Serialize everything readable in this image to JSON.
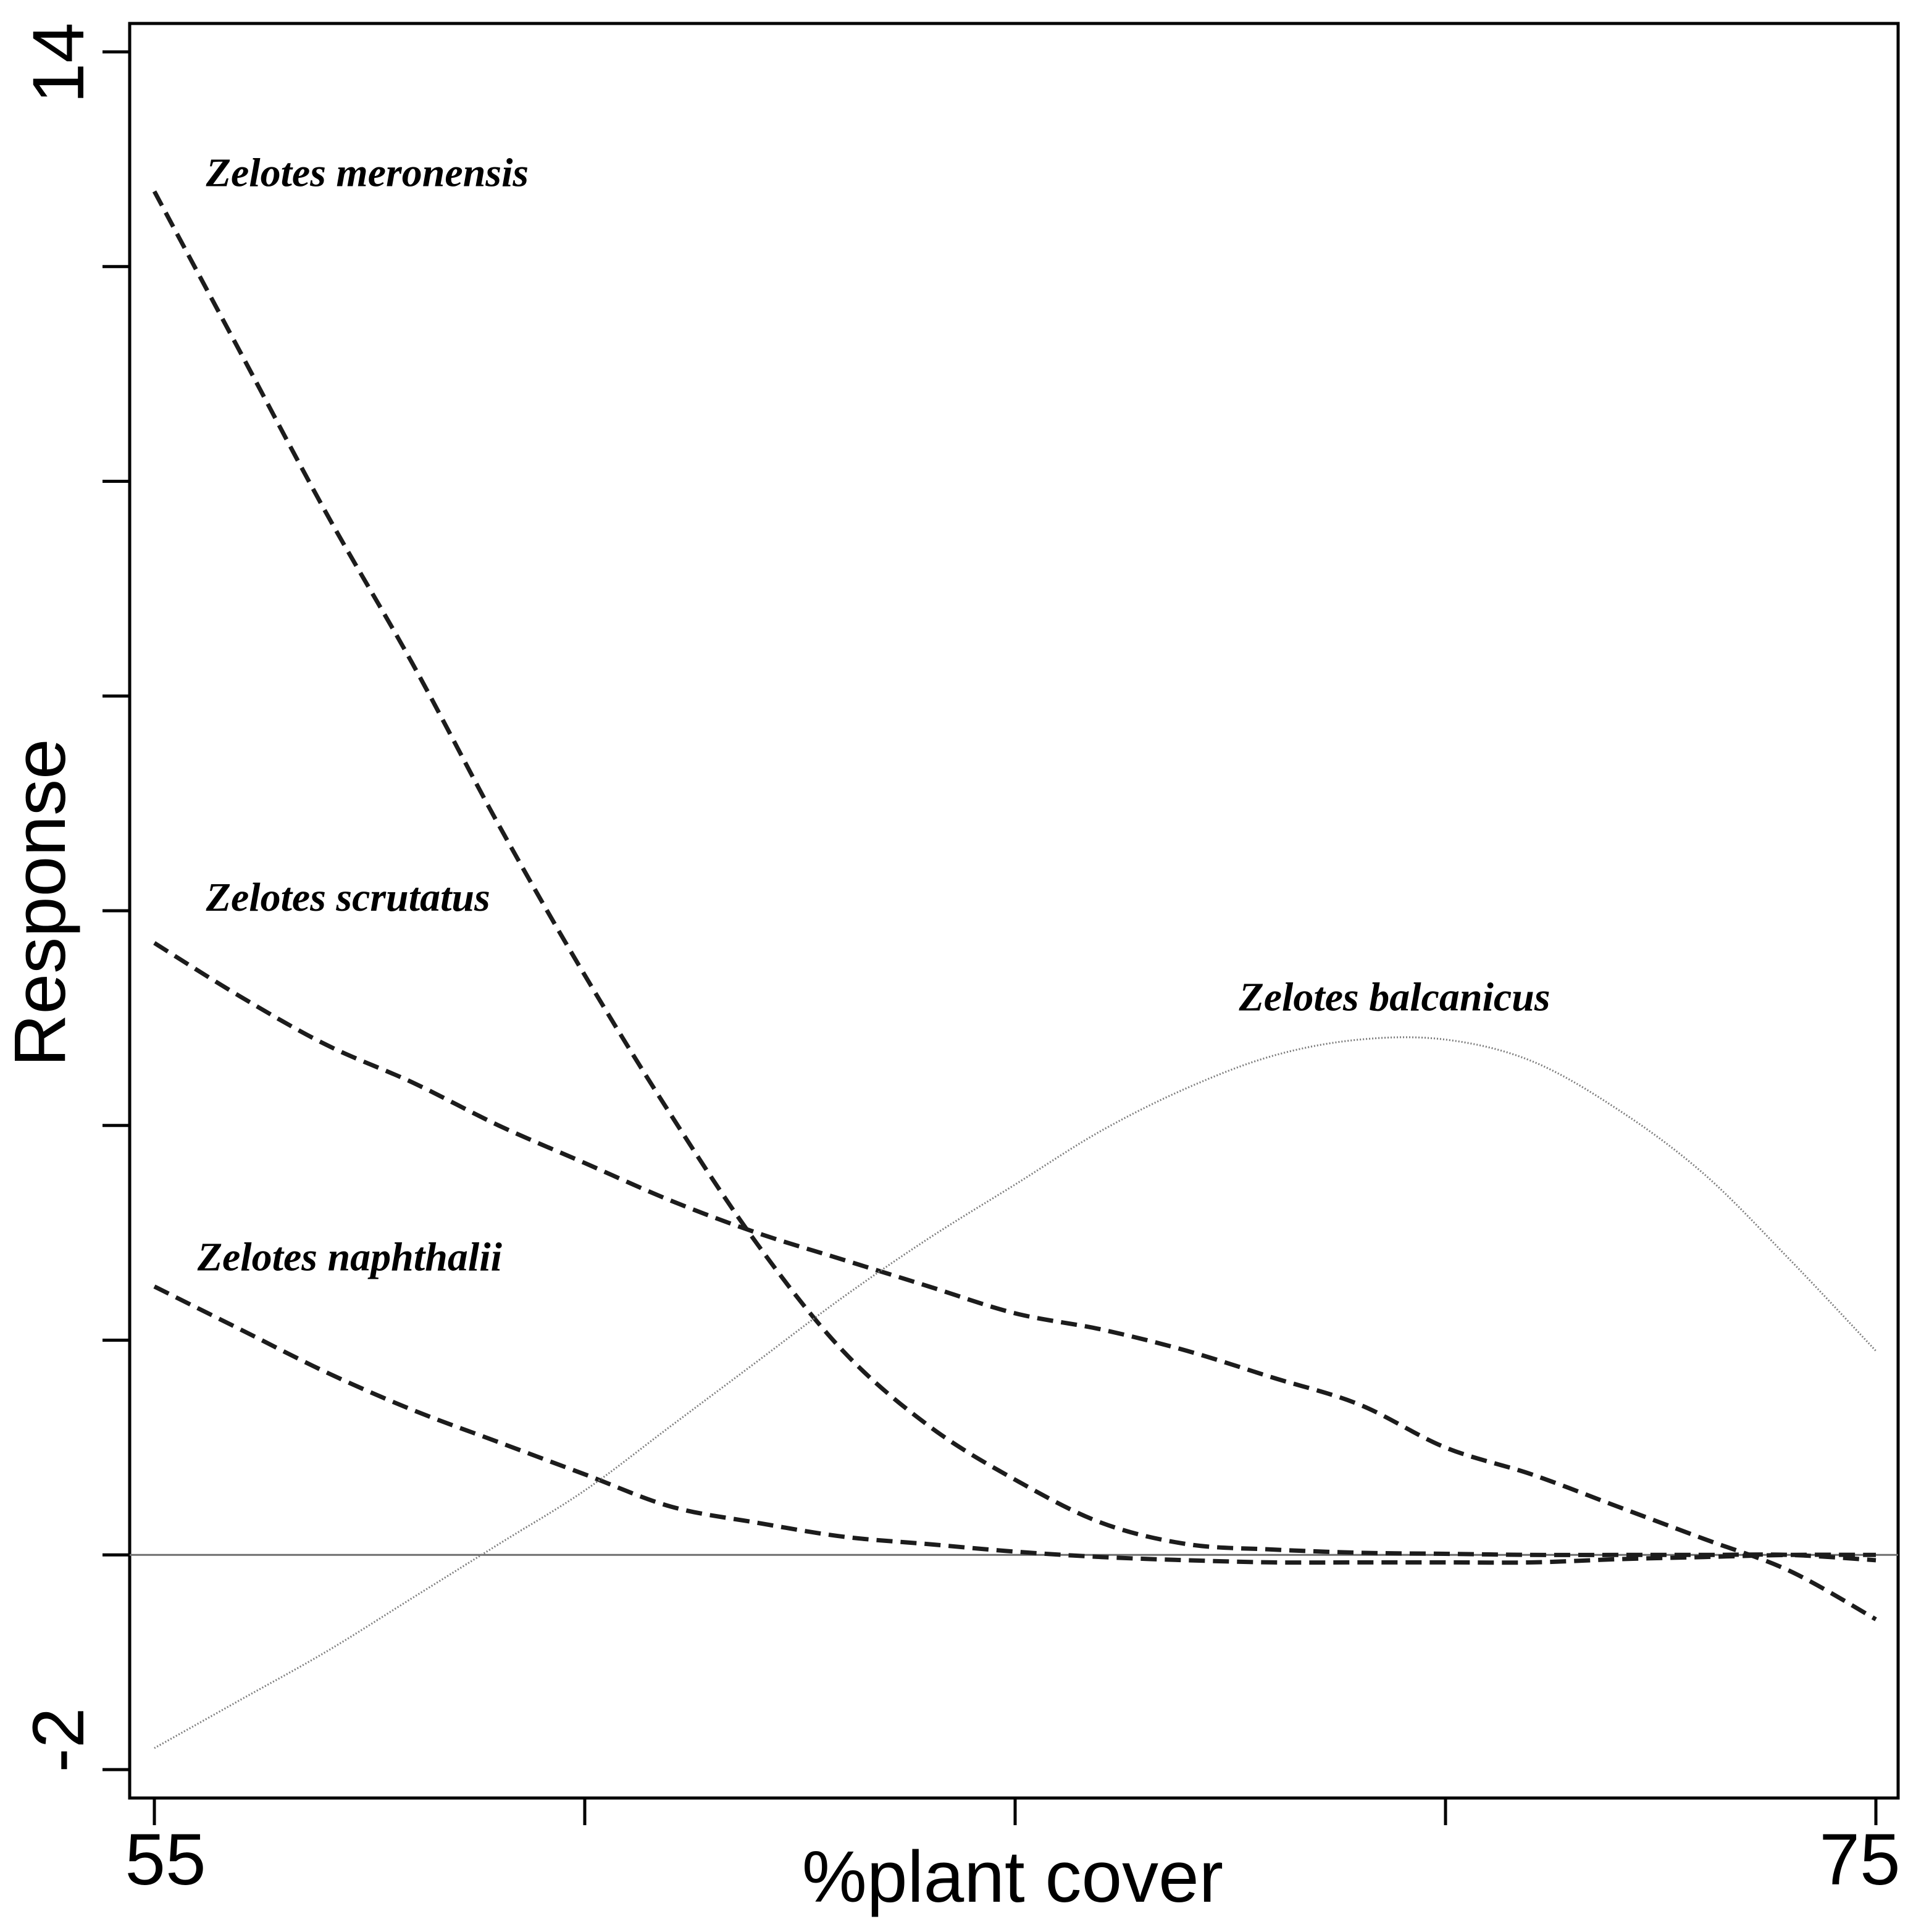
{
  "chart_data": {
    "type": "line",
    "title": "",
    "xlabel": "%plant cover",
    "ylabel": "Response",
    "xlim": [
      55,
      75
    ],
    "ylim": [
      -2,
      14
    ],
    "x_tick_labels": [
      "55",
      "75"
    ],
    "y_tick_labels": [
      "-2",
      "14"
    ],
    "x_ticks": [
      55,
      60,
      65,
      70,
      75
    ],
    "y_ticks": [
      -2,
      0,
      2,
      4,
      6,
      8,
      10,
      12,
      14
    ],
    "reference_line": 0,
    "grid": false,
    "legend": "none",
    "series": [
      {
        "name": "Zelotes meronensis",
        "style": "dashed",
        "x": [
          55,
          56,
          57,
          58,
          59,
          60,
          61,
          62,
          63,
          64,
          65,
          66,
          67,
          68,
          69,
          70,
          71,
          72,
          73,
          74,
          75
        ],
        "y": [
          12.7,
          11.2,
          9.7,
          8.3,
          6.8,
          5.4,
          4.1,
          2.9,
          1.9,
          1.2,
          0.7,
          0.3,
          0.1,
          0.05,
          0.02,
          0.01,
          0.0,
          0.0,
          0.0,
          0.0,
          -0.05
        ]
      },
      {
        "name": "Zelotes scrutatus",
        "style": "dashed",
        "x": [
          55,
          56,
          57,
          58,
          59,
          60,
          61,
          62,
          63,
          64,
          65,
          66,
          67,
          68,
          69,
          70,
          71,
          72,
          73,
          74,
          75
        ],
        "y": [
          5.7,
          5.2,
          4.75,
          4.4,
          4.0,
          3.65,
          3.3,
          3.0,
          2.75,
          2.5,
          2.25,
          2.1,
          1.9,
          1.65,
          1.4,
          1.0,
          0.75,
          0.45,
          0.15,
          -0.15,
          -0.6
        ]
      },
      {
        "name": "Zelotes naphthalii",
        "style": "dashed",
        "x": [
          55,
          56,
          57,
          58,
          59,
          60,
          61,
          62,
          63,
          64,
          65,
          66,
          67,
          68,
          69,
          70,
          71,
          72,
          73,
          74,
          75
        ],
        "y": [
          2.5,
          2.1,
          1.7,
          1.35,
          1.05,
          0.75,
          0.45,
          0.3,
          0.17,
          0.1,
          0.03,
          -0.02,
          -0.05,
          -0.07,
          -0.07,
          -0.07,
          -0.07,
          -0.04,
          -0.02,
          0.0,
          0.0
        ]
      },
      {
        "name": "Zelotes balcanicus",
        "style": "dotted",
        "x": [
          55,
          56,
          57,
          58,
          59,
          60,
          61,
          62,
          63,
          64,
          65,
          66,
          67,
          68,
          69,
          70,
          71,
          72,
          73,
          74,
          75
        ],
        "y": [
          -1.8,
          -1.35,
          -0.9,
          -0.4,
          0.1,
          0.6,
          1.2,
          1.8,
          2.4,
          2.95,
          3.45,
          3.95,
          4.35,
          4.65,
          4.8,
          4.8,
          4.6,
          4.15,
          3.55,
          2.75,
          1.9
        ]
      }
    ],
    "annotations": [
      {
        "series": "Zelotes meronensis",
        "text": "Zelotes meronensis",
        "x": 55.6,
        "y": 12.75
      },
      {
        "series": "Zelotes scrutatus",
        "text": "Zelotes scrutatus",
        "x": 55.6,
        "y": 6.0
      },
      {
        "series": "Zelotes naphthalii",
        "text": "Zelotes naphthalii",
        "x": 55.5,
        "y": 2.65
      },
      {
        "series": "Zelotes balcanicus",
        "text": "Zelotes balcanicus",
        "x": 67.6,
        "y": 5.07
      }
    ]
  }
}
